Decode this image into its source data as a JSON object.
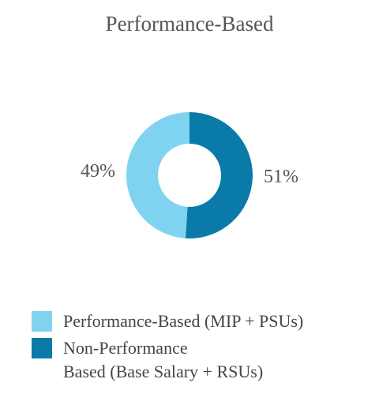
{
  "chart_data": {
    "type": "donut",
    "title": "Performance-Based",
    "categories": [
      "Performance-Based (MIP + PSUs)",
      "Non-Performance\nBased (Base Salary + RSUs)"
    ],
    "values": [
      49,
      51
    ],
    "value_labels": [
      "49%",
      "51%"
    ],
    "colors": [
      "#7fd3f0",
      "#0a7ba8"
    ]
  }
}
